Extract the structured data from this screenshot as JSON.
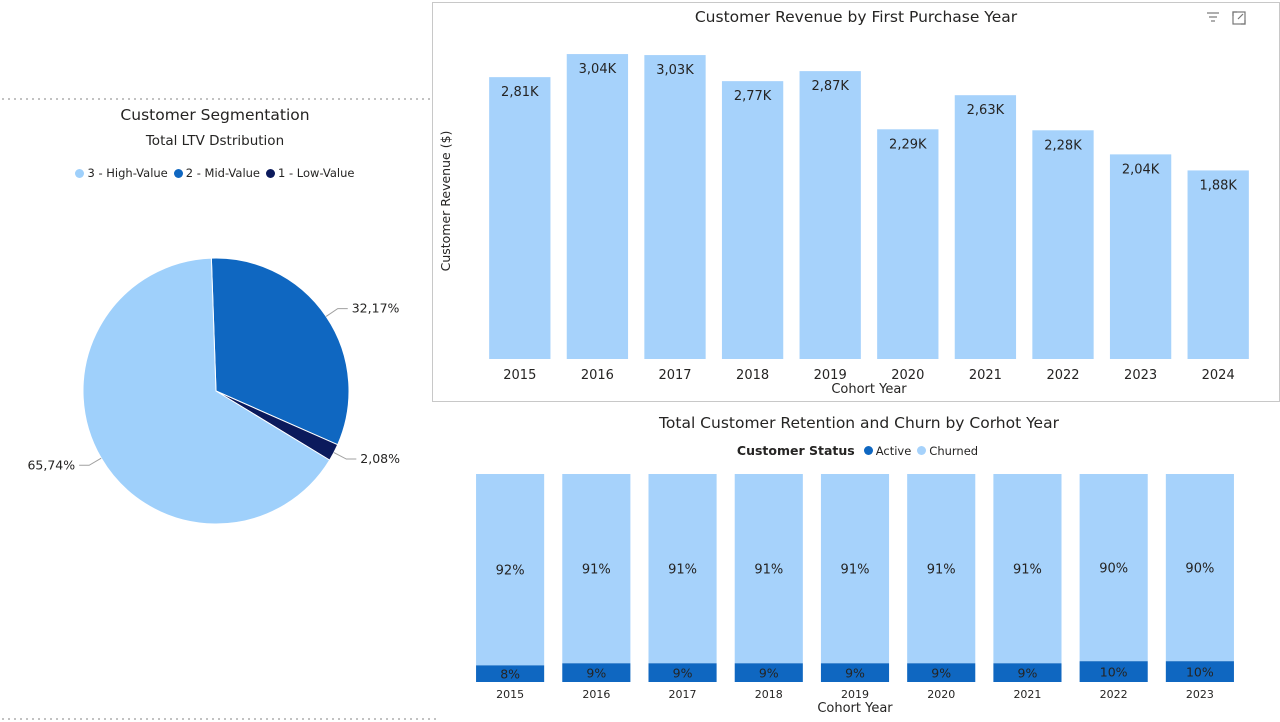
{
  "colors": {
    "high_value": "#9fd0fb",
    "mid_value": "#0f67c1",
    "low_value": "#0b1a5c",
    "revenue_bar": "#a6d2fb",
    "active": "#0f67c1",
    "churned": "#a6d2fb"
  },
  "segmentation": {
    "title": "Customer Segmentation",
    "subtitle": "Total LTV Dstribution",
    "legend": [
      {
        "label": "3 - High-Value",
        "color": "#9fd0fb"
      },
      {
        "label": "2 - Mid-Value",
        "color": "#0f67c1"
      },
      {
        "label": "1 - Low-Value",
        "color": "#0b1a5c"
      }
    ]
  },
  "revenue": {
    "toolbar_icons": [
      "filter-icon",
      "focus-mode-icon"
    ]
  },
  "retention": {
    "legend_title": "Customer Status",
    "legend": [
      {
        "label": "Active",
        "color": "#0f67c1"
      },
      {
        "label": "Churned",
        "color": "#a6d2fb"
      }
    ]
  },
  "chart_data": [
    {
      "type": "pie",
      "title": "Customer Segmentation",
      "subtitle": "Total LTV Dstribution",
      "slices": [
        {
          "label": "3 - High-Value",
          "value": 65.74,
          "display": "65,74%"
        },
        {
          "label": "2 - Mid-Value",
          "value": 32.17,
          "display": "32,17%"
        },
        {
          "label": "1 - Low-Value",
          "value": 2.08,
          "display": "2,08%"
        }
      ],
      "legend_position": "top"
    },
    {
      "type": "bar",
      "title": "Customer Revenue by First Purchase Year",
      "xlabel": "Cohort Year",
      "ylabel": "Customer Revenue ($)",
      "categories": [
        "2015",
        "2016",
        "2017",
        "2018",
        "2019",
        "2020",
        "2021",
        "2022",
        "2023",
        "2024"
      ],
      "values": [
        2810,
        3040,
        3030,
        2770,
        2870,
        2290,
        2630,
        2280,
        2040,
        1880
      ],
      "data_labels": [
        "2,81K",
        "3,04K",
        "3,03K",
        "2,77K",
        "2,87K",
        "2,29K",
        "2,63K",
        "2,28K",
        "2,04K",
        "1,88K"
      ],
      "ylim": [
        0,
        3250
      ],
      "grid": false
    },
    {
      "type": "bar",
      "stacked": "percent",
      "title": "Total Customer Retention and Churn by Corhot Year",
      "xlabel": "Cohort Year",
      "categories": [
        "2015",
        "2016",
        "2017",
        "2018",
        "2019",
        "2020",
        "2021",
        "2022",
        "2023"
      ],
      "series": [
        {
          "name": "Active",
          "values": [
            8,
            9,
            9,
            9,
            9,
            9,
            9,
            10,
            10
          ],
          "labels": [
            "8%",
            "9%",
            "9%",
            "9%",
            "9%",
            "9%",
            "9%",
            "10%",
            "10%"
          ]
        },
        {
          "name": "Churned",
          "values": [
            92,
            91,
            91,
            91,
            91,
            91,
            91,
            90,
            90
          ],
          "labels": [
            "92%",
            "91%",
            "91%",
            "91%",
            "91%",
            "91%",
            "91%",
            "90%",
            "90%"
          ]
        }
      ],
      "ylim": [
        0,
        100
      ],
      "legend_position": "top"
    }
  ]
}
